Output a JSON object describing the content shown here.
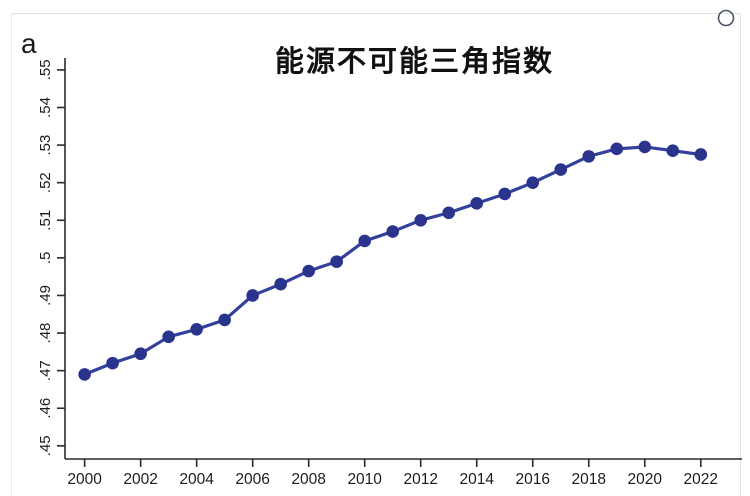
{
  "page": {
    "panel_label": "a",
    "corner_icon": "circle-outline"
  },
  "chart_data": {
    "type": "line",
    "title": "能源不可能三角指数",
    "xlabel": "",
    "ylabel": "",
    "x": [
      2000,
      2001,
      2002,
      2003,
      2004,
      2005,
      2006,
      2007,
      2008,
      2009,
      2010,
      2011,
      2012,
      2013,
      2014,
      2015,
      2016,
      2017,
      2018,
      2019,
      2020,
      2021,
      2022
    ],
    "series": [
      {
        "name": "能源不可能三角指数",
        "values": [
          0.469,
          0.472,
          0.4745,
          0.479,
          0.481,
          0.4835,
          0.49,
          0.493,
          0.4965,
          0.499,
          0.5045,
          0.507,
          0.51,
          0.512,
          0.5145,
          0.517,
          0.52,
          0.5235,
          0.527,
          0.529,
          0.5295,
          0.5285,
          0.5275
        ]
      }
    ],
    "x_tick_years": [
      2000,
      2002,
      2004,
      2006,
      2008,
      2010,
      2012,
      2014,
      2016,
      2018,
      2020,
      2022
    ],
    "x_tick_labels": [
      "2000",
      "2002",
      "2004",
      "2006",
      "2008",
      "2010",
      "2012",
      "2014",
      "2016",
      "2018",
      "2020",
      "2022"
    ],
    "y_ticks": [
      0.45,
      0.46,
      0.47,
      0.48,
      0.49,
      0.5,
      0.51,
      0.52,
      0.53,
      0.54,
      0.55
    ],
    "y_tick_labels": [
      ".45",
      ".46",
      ".47",
      ".48",
      ".49",
      ".5",
      ".51",
      ".52",
      ".53",
      ".54",
      ".55"
    ],
    "xlim": [
      1999.3,
      2023.4
    ],
    "ylim": [
      0.4465,
      0.5521
    ],
    "grid": false,
    "legend": "none",
    "line_color": "#34409d",
    "marker_color": "#2b348c",
    "axis_color": "#2b2b2b",
    "tick_label_color": "#1c1c1c",
    "marker": "circle"
  }
}
